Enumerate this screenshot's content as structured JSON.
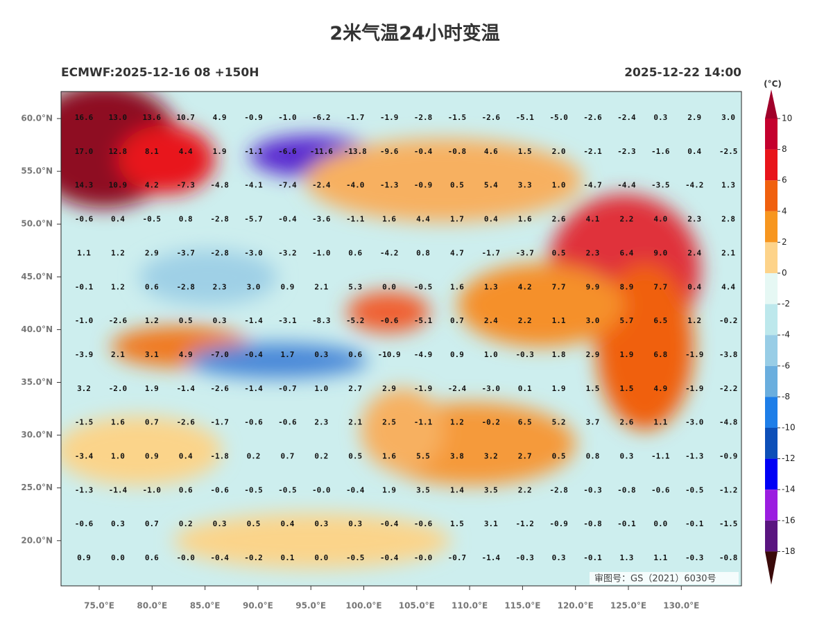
{
  "title": "2米气温24小时变温",
  "model_label": "ECMWF:2025-12-16 08 +150H",
  "valid_time": "2025-12-22 14:00",
  "watermark": "审图号：GS（2021）6030号",
  "lat_labels": [
    "60.0°N",
    "55.0°N",
    "50.0°N",
    "45.0°N",
    "40.0°N",
    "35.0°N",
    "30.0°N",
    "25.0°N",
    "20.0°N"
  ],
  "lon_labels": [
    "75.0°E",
    "80.0°E",
    "85.0°E",
    "90.0°E",
    "95.0°E",
    "100.0°E",
    "105.0°E",
    "110.0°E",
    "115.0°E",
    "120.0°E",
    "125.0°E",
    "130.0°E"
  ],
  "colorbar": {
    "unit": "(°C)",
    "ticks": [
      "10",
      "8",
      "6",
      "4",
      "2",
      "0",
      "-2",
      "-4",
      "-6",
      "-8",
      "-10",
      "-12",
      "-14",
      "-16",
      "-18"
    ],
    "colors": [
      "#a0002a",
      "#c4002e",
      "#e8141a",
      "#f0600e",
      "#f7961f",
      "#fdd38a",
      "#e6f8f4",
      "#bde8ec",
      "#98cde6",
      "#6aaede",
      "#1e7ee8",
      "#0d4fb8",
      "#0000f5",
      "#9b1de0",
      "#5a1580",
      "#7a0a1a",
      "#3a0a0a"
    ]
  },
  "grid_values": [
    [
      "16.6",
      "13.0",
      "13.6",
      "10.7",
      "4.9",
      "-0.9",
      "-1.0",
      "-6.2",
      "-1.7",
      "-1.9",
      "-2.8",
      "-1.5",
      "-2.6",
      "-5.1",
      "-5.0",
      "-2.6",
      "-2.4",
      "0.3",
      "2.9",
      "3.0"
    ],
    [
      "17.0",
      "12.8",
      "8.1",
      "4.4",
      "1.9",
      "-1.1",
      "-6.6",
      "-11.6",
      "-13.8",
      "-9.6",
      "-0.4",
      "-0.8",
      "4.6",
      "1.5",
      "2.0",
      "-2.1",
      "-2.3",
      "-1.6",
      "0.4",
      "-2.5"
    ],
    [
      "14.3",
      "10.9",
      "4.2",
      "-7.3",
      "-4.8",
      "-4.1",
      "-7.4",
      "-2.4",
      "-4.0",
      "-1.3",
      "-0.9",
      "0.5",
      "5.4",
      "3.3",
      "1.0",
      "-4.7",
      "-4.4",
      "-3.5",
      "-4.2",
      "1.3"
    ],
    [
      "-0.6",
      "0.4",
      "-0.5",
      "0.8",
      "-2.8",
      "-5.7",
      "-0.4",
      "-3.6",
      "-1.1",
      "1.6",
      "4.4",
      "1.7",
      "0.4",
      "1.6",
      "2.6",
      "4.1",
      "2.2",
      "4.0",
      "2.3",
      "2.8"
    ],
    [
      "1.1",
      "1.2",
      "2.9",
      "-3.7",
      "-2.8",
      "-3.0",
      "-3.2",
      "-1.0",
      "0.6",
      "-4.2",
      "0.8",
      "4.7",
      "-1.7",
      "-3.7",
      "0.5",
      "2.3",
      "6.4",
      "9.0",
      "2.4",
      "2.1"
    ],
    [
      "-0.1",
      "1.2",
      "0.6",
      "-2.8",
      "2.3",
      "3.0",
      "0.9",
      "2.1",
      "5.3",
      "0.0",
      "-0.5",
      "1.6",
      "1.3",
      "4.2",
      "7.7",
      "9.9",
      "8.9",
      "7.7",
      "0.4",
      "4.4"
    ],
    [
      "-1.0",
      "-2.6",
      "1.2",
      "0.5",
      "0.3",
      "-1.4",
      "-3.1",
      "-8.3",
      "-5.2",
      "-0.6",
      "-5.1",
      "0.7",
      "2.4",
      "2.2",
      "1.1",
      "3.0",
      "5.7",
      "6.5",
      "1.2",
      "-0.2"
    ],
    [
      "-3.9",
      "2.1",
      "3.1",
      "4.9",
      "-7.0",
      "-0.4",
      "1.7",
      "0.3",
      "0.6",
      "-10.9",
      "-4.9",
      "0.9",
      "1.0",
      "-0.3",
      "1.8",
      "2.9",
      "1.9",
      "6.8",
      "-1.9",
      "-3.8"
    ],
    [
      "3.2",
      "-2.0",
      "1.9",
      "-1.4",
      "-2.6",
      "-1.4",
      "-0.7",
      "1.0",
      "2.7",
      "2.9",
      "-1.9",
      "-2.4",
      "-3.0",
      "0.1",
      "1.9",
      "1.5",
      "1.5",
      "4.9",
      "-1.9",
      "-2.2"
    ],
    [
      "-1.5",
      "1.6",
      "0.7",
      "-2.6",
      "-1.7",
      "-0.6",
      "-0.6",
      "2.3",
      "2.1",
      "2.5",
      "-1.1",
      "1.2",
      "-0.2",
      "6.5",
      "5.2",
      "3.7",
      "2.6",
      "1.1",
      "-3.0",
      "-4.8"
    ],
    [
      "-3.4",
      "1.0",
      "0.9",
      "0.4",
      "-1.8",
      "0.2",
      "0.7",
      "0.2",
      "0.5",
      "1.6",
      "5.5",
      "3.8",
      "3.2",
      "2.7",
      "0.5",
      "0.8",
      "0.3",
      "-1.1",
      "-1.3",
      "-0.9"
    ],
    [
      "-1.3",
      "-1.4",
      "-1.0",
      "0.6",
      "-0.6",
      "-0.5",
      "-0.5",
      "-0.0",
      "-0.4",
      "1.9",
      "3.5",
      "1.4",
      "3.5",
      "2.2",
      "-2.8",
      "-0.3",
      "-0.8",
      "-0.6",
      "-0.5",
      "-1.2"
    ],
    [
      "-0.6",
      "0.3",
      "0.7",
      "0.2",
      "0.3",
      "0.5",
      "0.4",
      "0.3",
      "0.3",
      "-0.4",
      "-0.6",
      "1.5",
      "3.1",
      "-1.2",
      "-0.9",
      "-0.8",
      "-0.1",
      "0.0",
      "-0.1",
      "-1.5"
    ],
    [
      "0.9",
      "0.0",
      "0.6",
      "-0.0",
      "-0.4",
      "-0.2",
      "0.1",
      "0.0",
      "-0.5",
      "-0.4",
      "-0.0",
      "-0.7",
      "-1.4",
      "-0.3",
      "0.3",
      "-0.1",
      "1.3",
      "1.1",
      "-0.3",
      "-0.8"
    ]
  ]
}
